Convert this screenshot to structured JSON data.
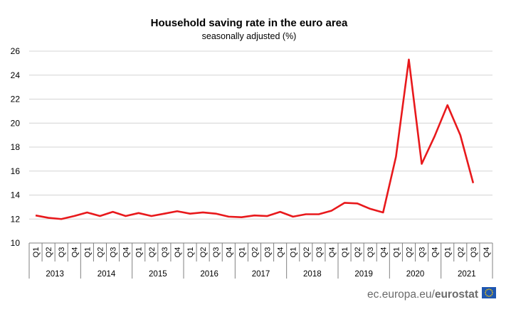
{
  "chart_data": {
    "type": "line",
    "title": "Household saving rate in the euro area",
    "subtitle": "seasonally adjusted (%)",
    "ylim": [
      10,
      26
    ],
    "yticks": [
      10,
      12,
      14,
      16,
      18,
      20,
      22,
      24,
      26
    ],
    "grid": true,
    "legend": "none",
    "color": "#e8191c",
    "years": [
      "2013",
      "2014",
      "2015",
      "2016",
      "2017",
      "2018",
      "2019",
      "2020",
      "2021"
    ],
    "quarters": [
      "Q1",
      "Q2",
      "Q3",
      "Q4"
    ],
    "values": [
      12.3,
      12.1,
      12.0,
      12.25,
      12.55,
      12.25,
      12.6,
      12.25,
      12.5,
      12.25,
      12.45,
      12.65,
      12.45,
      12.55,
      12.45,
      12.2,
      12.15,
      12.3,
      12.25,
      12.6,
      12.2,
      12.4,
      12.4,
      12.7,
      13.35,
      13.3,
      12.85,
      12.55,
      17.2,
      25.3,
      16.6,
      18.9,
      21.5,
      19.0,
      15.0
    ]
  },
  "source": {
    "url": "ec.europa.eu/",
    "name": "eurostat"
  },
  "colors": {
    "line": "#e8191c",
    "eu_flag_bg": "#1e56b0",
    "eu_flag_stars": "#ffcc00"
  }
}
